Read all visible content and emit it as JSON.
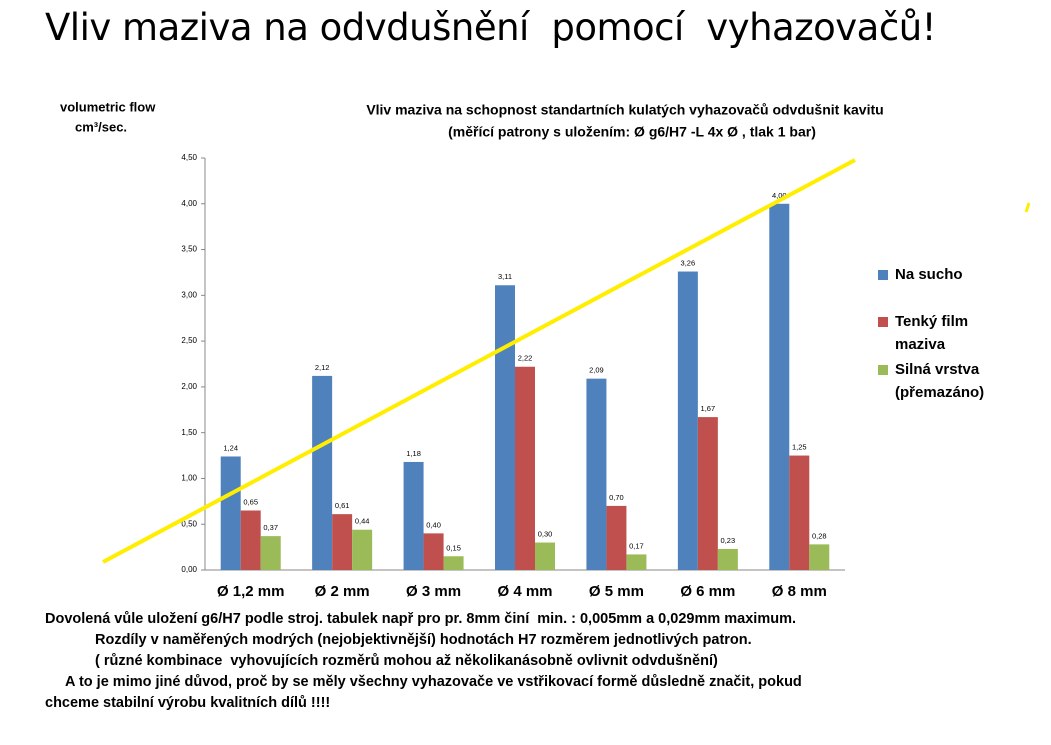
{
  "title": "Vliv maziva na odvdušnění  pomocí  vyhazovačů!",
  "chart_data": {
    "type": "bar",
    "title": [
      "Vliv maziva na  schopnost standartních  kulatých vyhazovačů odvdušnit kavitu",
      "(měřící patrony s uložením: Ø g6/H7 -L 4x Ø , tlak 1 bar)"
    ],
    "y_label": [
      "volumetric flow",
      "cm³/sec."
    ],
    "categories": [
      "Ø 1,2 mm",
      "Ø 2 mm",
      "Ø 3 mm",
      "Ø 4 mm",
      "Ø 5 mm",
      "Ø 6 mm",
      "Ø 8 mm"
    ],
    "series": [
      {
        "name": "Na sucho",
        "color": "#4f81bd",
        "values": [
          1.24,
          2.12,
          1.18,
          3.11,
          2.09,
          3.26,
          4.0
        ],
        "value_labels": [
          "1,24",
          "2,12",
          "1,18",
          "3,11",
          "2,09",
          "3,26",
          "4,00"
        ]
      },
      {
        "name": "Tenký film maziva",
        "color": "#c0504d",
        "values": [
          0.65,
          0.61,
          0.4,
          2.22,
          0.7,
          1.67,
          1.25
        ],
        "value_labels": [
          "0,65",
          "0,61",
          "0,40",
          "2,22",
          "0,70",
          "1,67",
          "1,25"
        ]
      },
      {
        "name": "Silná vrstva (přemazáno)",
        "color": "#9bbb59",
        "values": [
          0.37,
          0.44,
          0.15,
          0.3,
          0.17,
          0.23,
          0.28
        ],
        "value_labels": [
          "0,37",
          "0,44",
          "0,15",
          "0,30",
          "0,17",
          "0,23",
          "0,28"
        ]
      }
    ],
    "ylim": [
      0,
      4.5
    ],
    "yticks": [
      {
        "value": 0,
        "label": "0,00"
      },
      {
        "value": 0.5,
        "label": "0,50"
      },
      {
        "value": 1,
        "label": "1,00"
      },
      {
        "value": 1.5,
        "label": "1,50"
      },
      {
        "value": 2,
        "label": "2,00"
      },
      {
        "value": 2.5,
        "label": "2,50"
      },
      {
        "value": 3,
        "label": "3,00"
      },
      {
        "value": 3.5,
        "label": "3,50"
      },
      {
        "value": 4,
        "label": "4,00"
      },
      {
        "value": 4.5,
        "label": "4,50"
      }
    ],
    "grid": false
  },
  "footer": {
    "lines": [
      "Dovolená vůle uložení g6/H7 podle stroj. tabulek např pro pr. 8mm činí  min. : 0,005mm a 0,029mm maximum.",
      "Rozdíly v naměřených modrých (nejobjektivnější) hodnotách H7 rozměrem jednotlivých patron.",
      "( různé kombinace  vyhovujících rozměrů mohou až několikanásobně ovlivnit odvdušnění)",
      "A to je mimo jiné důvod, proč by se měly všechny vyhazovače ve vstřikovací formě důsledně značit, pokud",
      "chceme stabilní výrobu kvalitních dílů !!!!"
    ]
  }
}
